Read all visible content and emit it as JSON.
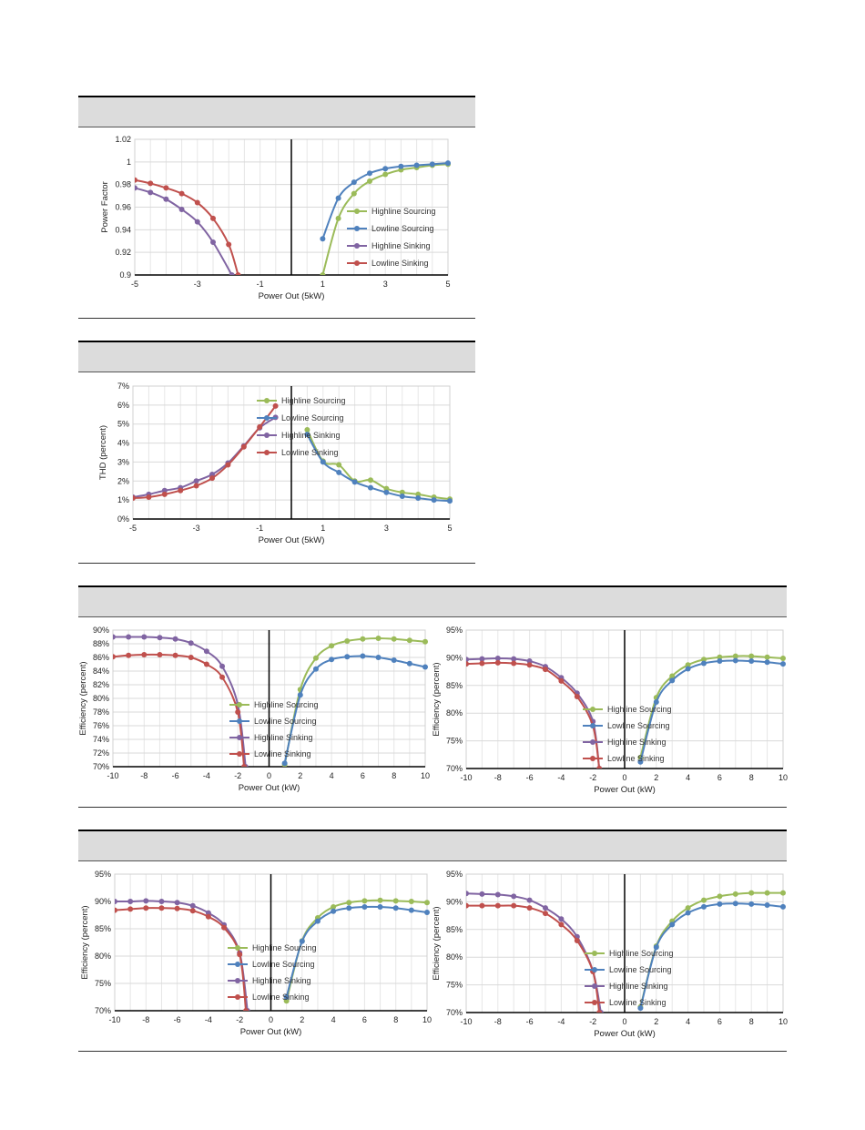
{
  "chart_data": [
    {
      "type": "line",
      "xlabel": "Power Out (5kW)",
      "ylabel": "Power Factor",
      "xlim": [
        -5,
        5
      ],
      "ylim": [
        0.9,
        1.02
      ],
      "xticks": [
        -5,
        -3,
        -1,
        1,
        3,
        5
      ],
      "xtick_labels": [
        "-5",
        "-3",
        "-1",
        "1",
        "3",
        "5"
      ],
      "yticks": [
        0.9,
        0.92,
        0.94,
        0.96,
        0.98,
        1.0,
        1.02
      ],
      "ytick_labels": [
        "0.9",
        "0.92",
        "0.94",
        "0.96",
        "0.98",
        "1",
        "1.02"
      ],
      "grid": true,
      "legend": "right",
      "series": [
        {
          "name": "Highline Sourcing",
          "color": "#9bbb59",
          "x": [
            1,
            1.5,
            2,
            2.5,
            3,
            3.5,
            4,
            4.5,
            5
          ],
          "y": [
            0.9,
            0.95,
            0.972,
            0.983,
            0.989,
            0.993,
            0.995,
            0.997,
            0.998
          ]
        },
        {
          "name": "Lowline Sourcing",
          "color": "#4f81bd",
          "x": [
            1,
            1.5,
            2,
            2.5,
            3,
            3.5,
            4,
            4.5,
            5
          ],
          "y": [
            0.932,
            0.968,
            0.982,
            0.99,
            0.994,
            0.996,
            0.997,
            0.998,
            0.999
          ]
        },
        {
          "name": "Highline Sinking",
          "color": "#8064a2",
          "x": [
            -5,
            -4.5,
            -4,
            -3.5,
            -3,
            -2.5,
            -1.9
          ],
          "y": [
            0.977,
            0.973,
            0.967,
            0.958,
            0.947,
            0.929,
            0.9
          ]
        },
        {
          "name": "Lowline Sinking",
          "color": "#c0504d",
          "x": [
            -5,
            -4.5,
            -4,
            -3.5,
            -3,
            -2.5,
            -2,
            -1.7
          ],
          "y": [
            0.984,
            0.981,
            0.977,
            0.972,
            0.964,
            0.95,
            0.927,
            0.9
          ]
        }
      ]
    },
    {
      "type": "line",
      "xlabel": "Power Out (5kW)",
      "ylabel": "THD (percent)",
      "xlim": [
        -5,
        5
      ],
      "ylim": [
        0,
        7
      ],
      "xticks": [
        -5,
        -3,
        -1,
        1,
        3,
        5
      ],
      "xtick_labels": [
        "-5",
        "-3",
        "-1",
        "1",
        "3",
        "5"
      ],
      "yticks": [
        0,
        1,
        2,
        3,
        4,
        5,
        6,
        7
      ],
      "ytick_labels": [
        "0%",
        "1%",
        "2%",
        "3%",
        "4%",
        "5%",
        "6%",
        "7%"
      ],
      "grid": true,
      "legend": "top-right",
      "series": [
        {
          "name": "Highline Sourcing",
          "color": "#9bbb59",
          "x": [
            0.5,
            1,
            1.5,
            2,
            2.5,
            3,
            3.5,
            4,
            4.5,
            5
          ],
          "y": [
            4.7,
            3.05,
            2.85,
            2.0,
            2.05,
            1.6,
            1.4,
            1.3,
            1.15,
            1.05
          ]
        },
        {
          "name": "Lowline Sourcing",
          "color": "#4f81bd",
          "x": [
            0.5,
            1,
            1.5,
            2,
            2.5,
            3,
            3.5,
            4,
            4.5,
            5
          ],
          "y": [
            4.45,
            3.0,
            2.45,
            1.95,
            1.65,
            1.4,
            1.2,
            1.1,
            1.0,
            0.95
          ]
        },
        {
          "name": "Highline Sinking",
          "color": "#8064a2",
          "x": [
            -5,
            -4.5,
            -4,
            -3.5,
            -3,
            -2.5,
            -2,
            -1.5,
            -1,
            -0.5
          ],
          "y": [
            1.15,
            1.3,
            1.5,
            1.65,
            2.0,
            2.35,
            2.95,
            3.85,
            4.8,
            5.35
          ]
        },
        {
          "name": "Lowline Sinking",
          "color": "#c0504d",
          "x": [
            -5,
            -4.5,
            -4,
            -3.5,
            -3,
            -2.5,
            -2,
            -1.5,
            -1,
            -0.5
          ],
          "y": [
            1.1,
            1.15,
            1.3,
            1.5,
            1.75,
            2.15,
            2.85,
            3.8,
            4.85,
            5.95
          ]
        }
      ]
    },
    {
      "type": "line",
      "xlabel": "Power Out (kW)",
      "ylabel": "Efficiency (percent)",
      "xlim": [
        -10,
        10
      ],
      "ylim": [
        70,
        90
      ],
      "xticks": [
        -10,
        -8,
        -6,
        -4,
        -2,
        0,
        2,
        4,
        6,
        8,
        10
      ],
      "xtick_labels": [
        "-10",
        "-8",
        "-6",
        "-4",
        "-2",
        "0",
        "2",
        "4",
        "6",
        "8",
        "10"
      ],
      "yticks": [
        70,
        72,
        74,
        76,
        78,
        80,
        82,
        84,
        86,
        88,
        90
      ],
      "ytick_labels": [
        "70%",
        "72%",
        "74%",
        "76%",
        "78%",
        "80%",
        "82%",
        "84%",
        "86%",
        "88%",
        "90%"
      ],
      "grid": true,
      "legend": "right",
      "series": [
        {
          "name": "Highline Sourcing",
          "color": "#9bbb59",
          "x": [
            1,
            2,
            3,
            4,
            5,
            6,
            7,
            8,
            9,
            10
          ],
          "y": [
            70.3,
            81.3,
            85.9,
            87.7,
            88.4,
            88.7,
            88.8,
            88.7,
            88.5,
            88.3
          ]
        },
        {
          "name": "Lowline Sourcing",
          "color": "#4f81bd",
          "x": [
            1,
            2,
            3,
            4,
            5,
            6,
            7,
            8,
            9,
            10
          ],
          "y": [
            70.5,
            80.5,
            84.3,
            85.7,
            86.1,
            86.2,
            86.0,
            85.6,
            85.1,
            84.6
          ]
        },
        {
          "name": "Highline Sinking",
          "color": "#8064a2",
          "x": [
            -10,
            -9,
            -8,
            -7,
            -6,
            -5,
            -4,
            -3,
            -2,
            -1.5
          ],
          "y": [
            89.0,
            89.0,
            89.0,
            88.9,
            88.7,
            88.1,
            86.9,
            84.7,
            79.1,
            70.0
          ]
        },
        {
          "name": "Lowline Sinking",
          "color": "#c0504d",
          "x": [
            -10,
            -9,
            -8,
            -7,
            -6,
            -5,
            -4,
            -3,
            -2,
            -1.6
          ],
          "y": [
            86.1,
            86.3,
            86.4,
            86.4,
            86.3,
            86.0,
            85.0,
            83.1,
            78.0,
            70.0
          ]
        }
      ]
    },
    {
      "type": "line",
      "xlabel": "Power Out (kW)",
      "ylabel": "Efficiency (percent)",
      "xlim": [
        -10,
        10
      ],
      "ylim": [
        70,
        95
      ],
      "xticks": [
        -10,
        -8,
        -6,
        -4,
        -2,
        0,
        2,
        4,
        6,
        8,
        10
      ],
      "xtick_labels": [
        "-10",
        "-8",
        "-6",
        "-4",
        "-2",
        "0",
        "2",
        "4",
        "6",
        "8",
        "10"
      ],
      "yticks": [
        70,
        75,
        80,
        85,
        90,
        95
      ],
      "ytick_labels": [
        "70%",
        "75%",
        "80%",
        "85%",
        "90%",
        "95%"
      ],
      "grid": true,
      "legend": "bottom-right",
      "series": [
        {
          "name": "Highline Sourcing",
          "color": "#9bbb59",
          "x": [
            1,
            2,
            3,
            4,
            5,
            6,
            7,
            8,
            9,
            10
          ],
          "y": [
            72.0,
            82.8,
            86.7,
            88.7,
            89.7,
            90.1,
            90.3,
            90.3,
            90.1,
            89.9
          ]
        },
        {
          "name": "Lowline Sourcing",
          "color": "#4f81bd",
          "x": [
            1,
            2,
            3,
            4,
            5,
            6,
            7,
            8,
            9,
            10
          ],
          "y": [
            71.2,
            82.0,
            85.9,
            88.0,
            89.0,
            89.4,
            89.5,
            89.4,
            89.2,
            88.9
          ]
        },
        {
          "name": "Highline Sinking",
          "color": "#8064a2",
          "x": [
            -10,
            -9,
            -8,
            -7,
            -6,
            -5,
            -4,
            -3,
            -2,
            -1.6
          ],
          "y": [
            89.7,
            89.8,
            89.9,
            89.8,
            89.4,
            88.4,
            86.4,
            83.6,
            78.5,
            70.0
          ]
        },
        {
          "name": "Lowline Sinking",
          "color": "#c0504d",
          "x": [
            -10,
            -9,
            -8,
            -7,
            -6,
            -5,
            -4,
            -3,
            -2,
            -1.6
          ],
          "y": [
            88.9,
            89.0,
            89.1,
            89.0,
            88.7,
            87.9,
            85.8,
            83.0,
            77.7,
            70.0
          ]
        }
      ]
    },
    {
      "type": "line",
      "xlabel": "Power Out (kW)",
      "ylabel": "Efficiency (percent)",
      "xlim": [
        -10,
        10
      ],
      "ylim": [
        70,
        95
      ],
      "xticks": [
        -10,
        -8,
        -6,
        -4,
        -2,
        0,
        2,
        4,
        6,
        8,
        10
      ],
      "xtick_labels": [
        "-10",
        "-8",
        "-6",
        "-4",
        "-2",
        "0",
        "2",
        "4",
        "6",
        "8",
        "10"
      ],
      "yticks": [
        70,
        75,
        80,
        85,
        90,
        95
      ],
      "ytick_labels": [
        "70%",
        "75%",
        "80%",
        "85%",
        "90%",
        "95%"
      ],
      "grid": true,
      "legend": "bottom-right",
      "series": [
        {
          "name": "Highline Sourcing",
          "color": "#9bbb59",
          "x": [
            1,
            2,
            3,
            4,
            5,
            6,
            7,
            8,
            9,
            10
          ],
          "y": [
            71.8,
            82.8,
            87.0,
            89.0,
            89.8,
            90.1,
            90.2,
            90.1,
            90.0,
            89.8
          ]
        },
        {
          "name": "Lowline Sourcing",
          "color": "#4f81bd",
          "x": [
            1,
            2,
            3,
            4,
            5,
            6,
            7,
            8,
            9,
            10
          ],
          "y": [
            72.5,
            82.7,
            86.4,
            88.2,
            88.8,
            89.0,
            89.0,
            88.8,
            88.4,
            88.0
          ]
        },
        {
          "name": "Highline Sinking",
          "color": "#8064a2",
          "x": [
            -10,
            -9,
            -8,
            -7,
            -6,
            -5,
            -4,
            -3,
            -2,
            -1.5
          ],
          "y": [
            90.0,
            90.0,
            90.1,
            90.0,
            89.8,
            89.2,
            87.9,
            85.7,
            80.6,
            70.0
          ]
        },
        {
          "name": "Lowline Sinking",
          "color": "#c0504d",
          "x": [
            -10,
            -9,
            -8,
            -7,
            -6,
            -5,
            -4,
            -3,
            -2,
            -1.6
          ],
          "y": [
            88.4,
            88.6,
            88.8,
            88.8,
            88.7,
            88.3,
            87.2,
            85.2,
            80.3,
            70.0
          ]
        }
      ]
    },
    {
      "type": "line",
      "xlabel": "Power Out (kW)",
      "ylabel": "Efficiency (percent)",
      "xlim": [
        -10,
        10
      ],
      "ylim": [
        70,
        95
      ],
      "xticks": [
        -10,
        -8,
        -6,
        -4,
        -2,
        0,
        2,
        4,
        6,
        8,
        10
      ],
      "xtick_labels": [
        "-10",
        "-8",
        "-6",
        "-4",
        "-2",
        "0",
        "2",
        "4",
        "6",
        "8",
        "10"
      ],
      "yticks": [
        70,
        75,
        80,
        85,
        90,
        95
      ],
      "ytick_labels": [
        "70%",
        "75%",
        "80%",
        "85%",
        "90%",
        "95%"
      ],
      "grid": true,
      "legend": "bottom-right",
      "series": [
        {
          "name": "Highline Sourcing",
          "color": "#9bbb59",
          "x": [
            1,
            2,
            3,
            4,
            5,
            6,
            7,
            8,
            9,
            10
          ],
          "y": [
            71.0,
            82.0,
            86.5,
            88.9,
            90.3,
            91.0,
            91.4,
            91.6,
            91.6,
            91.6
          ]
        },
        {
          "name": "Lowline Sourcing",
          "color": "#4f81bd",
          "x": [
            1,
            2,
            3,
            4,
            5,
            6,
            7,
            8,
            9,
            10
          ],
          "y": [
            70.8,
            81.8,
            85.9,
            88.0,
            89.1,
            89.6,
            89.7,
            89.6,
            89.4,
            89.1
          ]
        },
        {
          "name": "Highline Sinking",
          "color": "#8064a2",
          "x": [
            -10,
            -9,
            -8,
            -7,
            -6,
            -5,
            -4,
            -3,
            -2,
            -1.5
          ],
          "y": [
            91.5,
            91.4,
            91.3,
            91.0,
            90.3,
            88.9,
            86.9,
            83.7,
            77.5,
            70.0
          ]
        },
        {
          "name": "Lowline Sinking",
          "color": "#c0504d",
          "x": [
            -10,
            -9,
            -8,
            -7,
            -6,
            -5,
            -4,
            -3,
            -2,
            -1.6
          ],
          "y": [
            89.3,
            89.3,
            89.3,
            89.3,
            88.9,
            87.9,
            85.9,
            83.0,
            77.4,
            70.0
          ]
        }
      ]
    }
  ]
}
